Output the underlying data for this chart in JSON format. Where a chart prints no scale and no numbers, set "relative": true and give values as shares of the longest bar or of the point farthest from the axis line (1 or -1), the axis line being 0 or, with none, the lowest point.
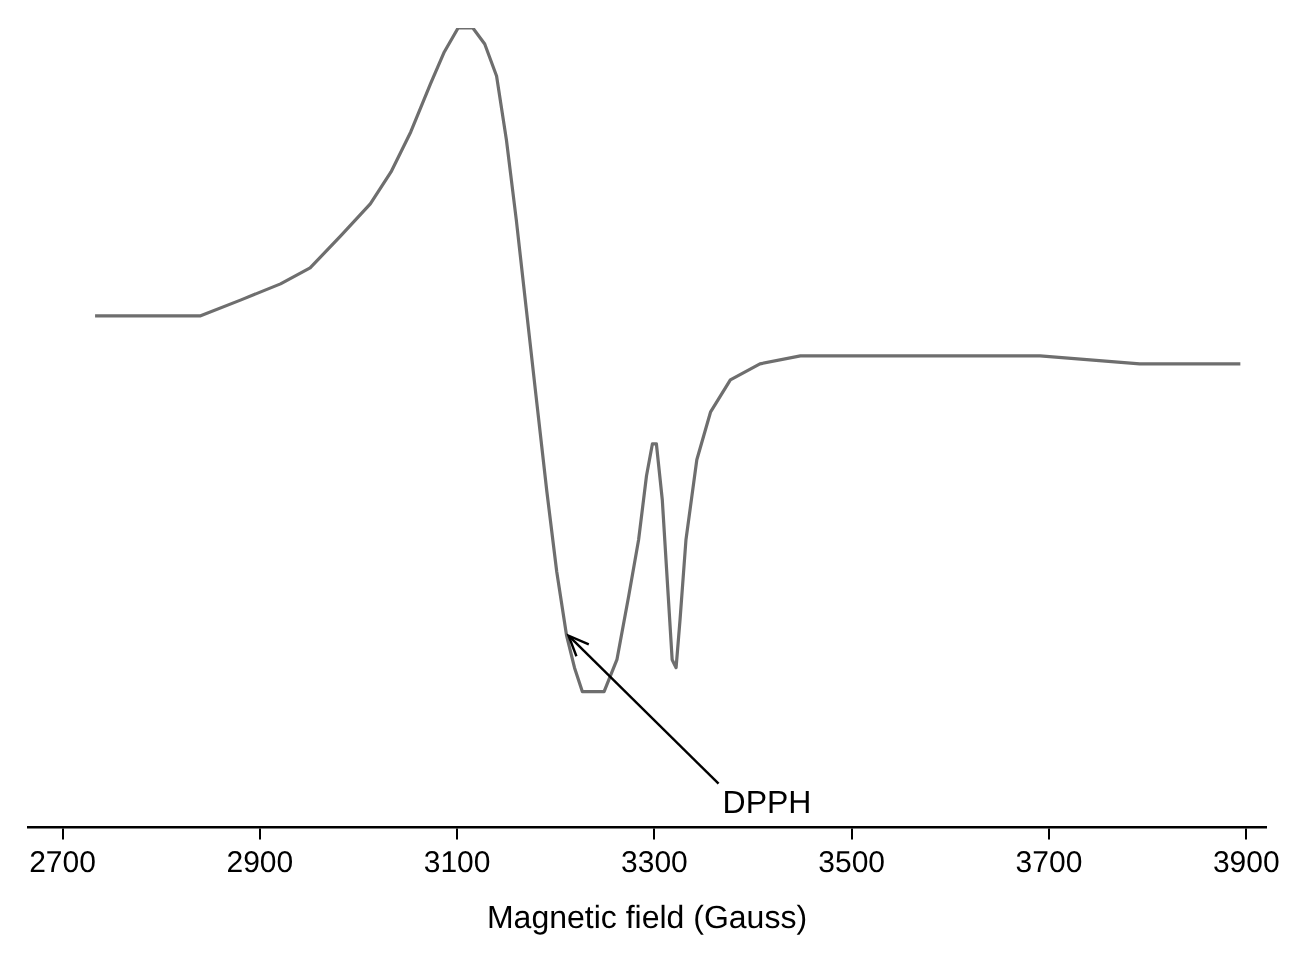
{
  "chart_data": {
    "type": "line",
    "relative": true,
    "xlabel": "Magnetic field (Gauss)",
    "x": [
      2733,
      2800,
      2840,
      2881,
      2921,
      2951,
      2982,
      3012,
      3033,
      3053,
      3073,
      3087,
      3101,
      3116,
      3128,
      3140,
      3150,
      3160,
      3170,
      3180,
      3191,
      3201,
      3211,
      3219,
      3227,
      3237,
      3249,
      3262,
      3274,
      3284,
      3292,
      3298,
      3302,
      3308,
      3314,
      3318,
      3322,
      3326,
      3332,
      3343,
      3357,
      3377,
      3407,
      3448,
      3529,
      3610,
      3691,
      3792,
      3894
    ],
    "series": [
      {
        "color": "#6e6e6e",
        "values": [
          0.64,
          0.64,
          0.64,
          0.66,
          0.68,
          0.7,
          0.74,
          0.78,
          0.82,
          0.87,
          0.93,
          0.97,
          1,
          1,
          0.98,
          0.94,
          0.86,
          0.76,
          0.65,
          0.54,
          0.42,
          0.32,
          0.24,
          0.2,
          0.17,
          0.17,
          0.17,
          0.21,
          0.29,
          0.36,
          0.44,
          0.48,
          0.48,
          0.41,
          0.29,
          0.21,
          0.2,
          0.26,
          0.36,
          0.46,
          0.52,
          0.56,
          0.58,
          0.59,
          0.59,
          0.59,
          0.59,
          0.58,
          0.58
        ]
      }
    ],
    "xlim": [
      2665,
      3920
    ],
    "xticks": [
      2700,
      2900,
      3100,
      3300,
      3500,
      3700,
      3900
    ],
    "marker": "none",
    "line_style": "solid",
    "grid": false,
    "legend": false,
    "annotations": [
      {
        "text": "DPPH",
        "x": 3213,
        "y": 0.24
      }
    ]
  }
}
